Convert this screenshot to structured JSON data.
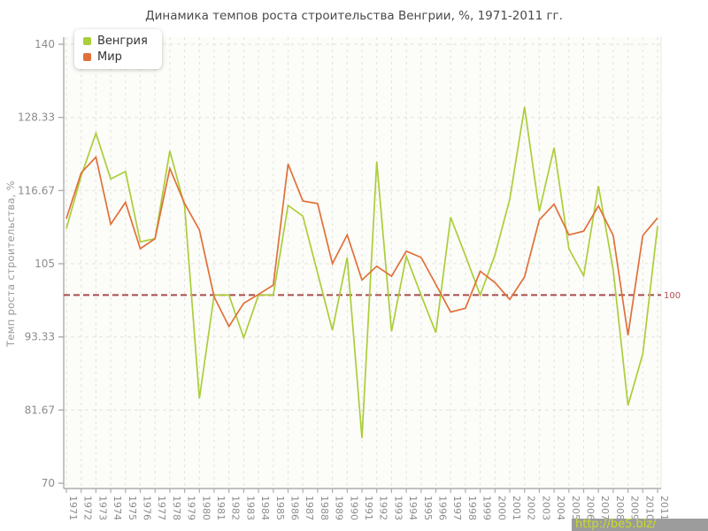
{
  "chart_data": {
    "type": "line",
    "title": "Динамика темпов роста строительства Венгрии, %, 1971-2011 гг.",
    "xlabel": "",
    "ylabel": "Темп роста строительства, %",
    "x": [
      1971,
      1972,
      1973,
      1974,
      1975,
      1976,
      1977,
      1978,
      1979,
      1980,
      1981,
      1982,
      1983,
      1984,
      1985,
      1986,
      1987,
      1988,
      1989,
      1990,
      1991,
      1992,
      1993,
      1994,
      1995,
      1996,
      1997,
      1998,
      1999,
      2000,
      2001,
      2002,
      2003,
      2004,
      2005,
      2006,
      2007,
      2008,
      2009,
      2010,
      2011
    ],
    "series": [
      {
        "name": "Венгрия",
        "color": "#abce3a",
        "values": [
          110.6,
          119,
          125.8,
          118.5,
          119.7,
          108.5,
          109,
          123,
          114.2,
          83.5,
          100,
          100,
          93.2,
          100,
          100,
          114.3,
          112.6,
          103.5,
          94.4,
          106,
          77.2,
          121.3,
          94.2,
          106.2,
          100,
          94,
          112.4,
          106.3,
          100,
          106.4,
          115.3,
          130,
          113.4,
          123.5,
          107.4,
          103.1,
          117.4,
          104,
          82.4,
          90.6,
          111
        ]
      },
      {
        "name": "Мир",
        "color": "#e0703a",
        "values": [
          112.2,
          119.5,
          122,
          111.3,
          114.8,
          107.4,
          109,
          120.2,
          114.6,
          110.4,
          99.7,
          95,
          98.7,
          100.1,
          101.6,
          120.9,
          115,
          114.6,
          105,
          109.6,
          102.4,
          104.6,
          103,
          107,
          106,
          101.7,
          97.3,
          97.9,
          103.8,
          102,
          99.3,
          102.9,
          112,
          114.5,
          109.6,
          110.2,
          114.2,
          109.5,
          93.6,
          109.5,
          112.3
        ]
      }
    ],
    "ylim": [
      70,
      140
    ],
    "yticks": [
      70,
      81.67,
      93.33,
      105,
      116.67,
      128.33,
      140
    ],
    "ytick_labels": [
      "70",
      "81.67",
      "93.33",
      "105",
      "116.67",
      "128.33",
      "140"
    ],
    "grid": true,
    "legend_position": "top-left",
    "reference_line": {
      "value": 100,
      "label": "100",
      "color": "#a84c4c"
    }
  },
  "legend": {
    "items": [
      {
        "label": "Венгрия",
        "color": "#abce3a"
      },
      {
        "label": "Мир",
        "color": "#e0703a"
      }
    ]
  },
  "watermark": {
    "text": "http://be5.biz/",
    "bg": "#9c9c9c",
    "color": "#c9dd21"
  }
}
